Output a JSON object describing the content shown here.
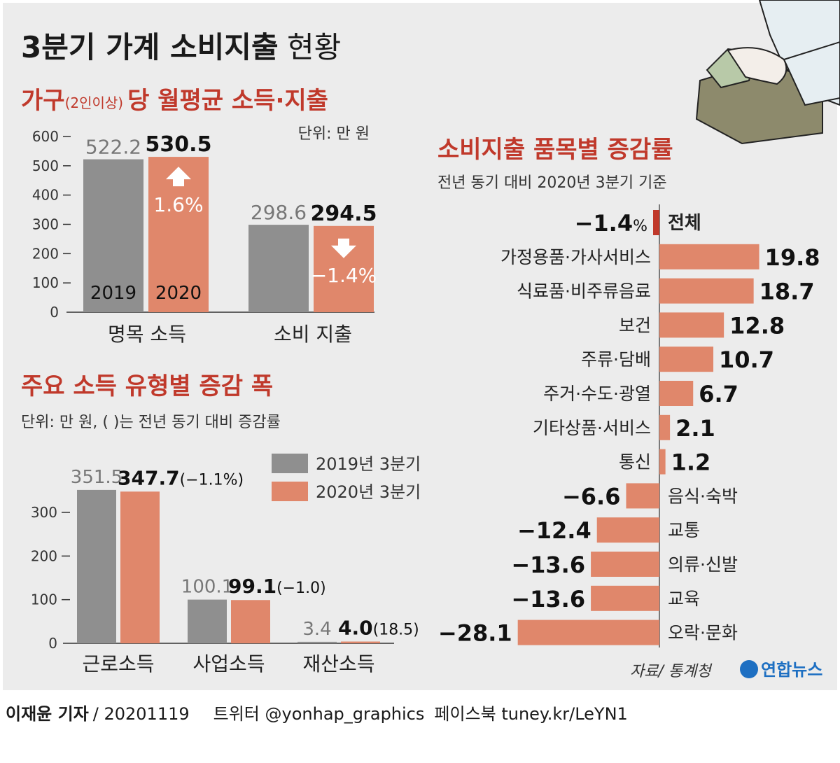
{
  "title": {
    "main": "3분기 가계 소비지출",
    "sub": "현황"
  },
  "colors": {
    "gray": "#8f8f8f",
    "orange": "#e0876b",
    "red": "#c0392b",
    "panel": "#ececec"
  },
  "chart_data": [
    {
      "type": "bar",
      "title": {
        "a": "가구",
        "paren": "(2인이상)",
        "b": "당 월평균 소득·지출"
      },
      "unit": "단위: 만 원",
      "categories": [
        "명목 소득",
        "소비 지출"
      ],
      "series": [
        {
          "name": "2019",
          "values": [
            522.2,
            298.6
          ]
        },
        {
          "name": "2020",
          "values": [
            530.5,
            294.5
          ]
        }
      ],
      "value_labels": {
        "2019": [
          "522.2",
          "298.6"
        ],
        "2020": [
          "530.5",
          "294.5"
        ]
      },
      "changes": [
        "1.6%",
        "−1.4%"
      ],
      "ylim": [
        0,
        600
      ],
      "yticks": [
        0,
        100,
        200,
        300,
        400,
        500,
        600
      ],
      "bar_year_labels": [
        "2019",
        "2020"
      ]
    },
    {
      "type": "bar",
      "title": "주요 소득 유형별 증감 폭",
      "unit": "단위: 만 원, (  )는 전년 동기 대비 증감률",
      "categories": [
        "근로소득",
        "사업소득",
        "재산소득"
      ],
      "series": [
        {
          "name": "2019년 3분기",
          "values": [
            351.5,
            100.1,
            3.4
          ]
        },
        {
          "name": "2020년 3분기",
          "values": [
            347.7,
            99.1,
            4.0
          ]
        }
      ],
      "value_labels": {
        "2019": [
          "351.5",
          "100.1",
          "3.4"
        ],
        "2020": [
          "347.7",
          "99.1",
          "4.0"
        ]
      },
      "changes": [
        "(−1.1%)",
        "(−1.0)",
        "(18.5)"
      ],
      "ylim": [
        0,
        350
      ],
      "yticks": [
        0,
        100,
        200,
        300
      ]
    },
    {
      "type": "bar",
      "orientation": "horizontal",
      "title": "소비지출 품목별 증감률",
      "subtitle": "전년 동기 대비 2020년 3분기 기준",
      "categories": [
        "전체",
        "가정용품·가사서비스",
        "식료품·비주류음료",
        "보건",
        "주류·담배",
        "주거·수도·광열",
        "기타상품·서비스",
        "통신",
        "음식·숙박",
        "교통",
        "의류·신발",
        "교육",
        "오락·문화"
      ],
      "values": [
        -1.4,
        19.8,
        18.7,
        12.8,
        10.7,
        6.7,
        2.1,
        1.2,
        -6.6,
        -12.4,
        -13.6,
        -13.6,
        -28.1
      ],
      "value_labels": [
        "−1.4",
        "19.8",
        "18.7",
        "12.8",
        "10.7",
        "6.7",
        "2.1",
        "1.2",
        "−6.6",
        "−12.4",
        "−13.6",
        "−13.6",
        "−28.1"
      ],
      "percent_sign": "%"
    }
  ],
  "source": "자료/ 통계청",
  "agency": "연합뉴스",
  "footer": {
    "reporter": "이재윤 기자",
    "date": "/ 20201119",
    "twitter": "트위터 @yonhap_graphics",
    "facebook": "페이스북 tuney.kr/LeYN1"
  }
}
